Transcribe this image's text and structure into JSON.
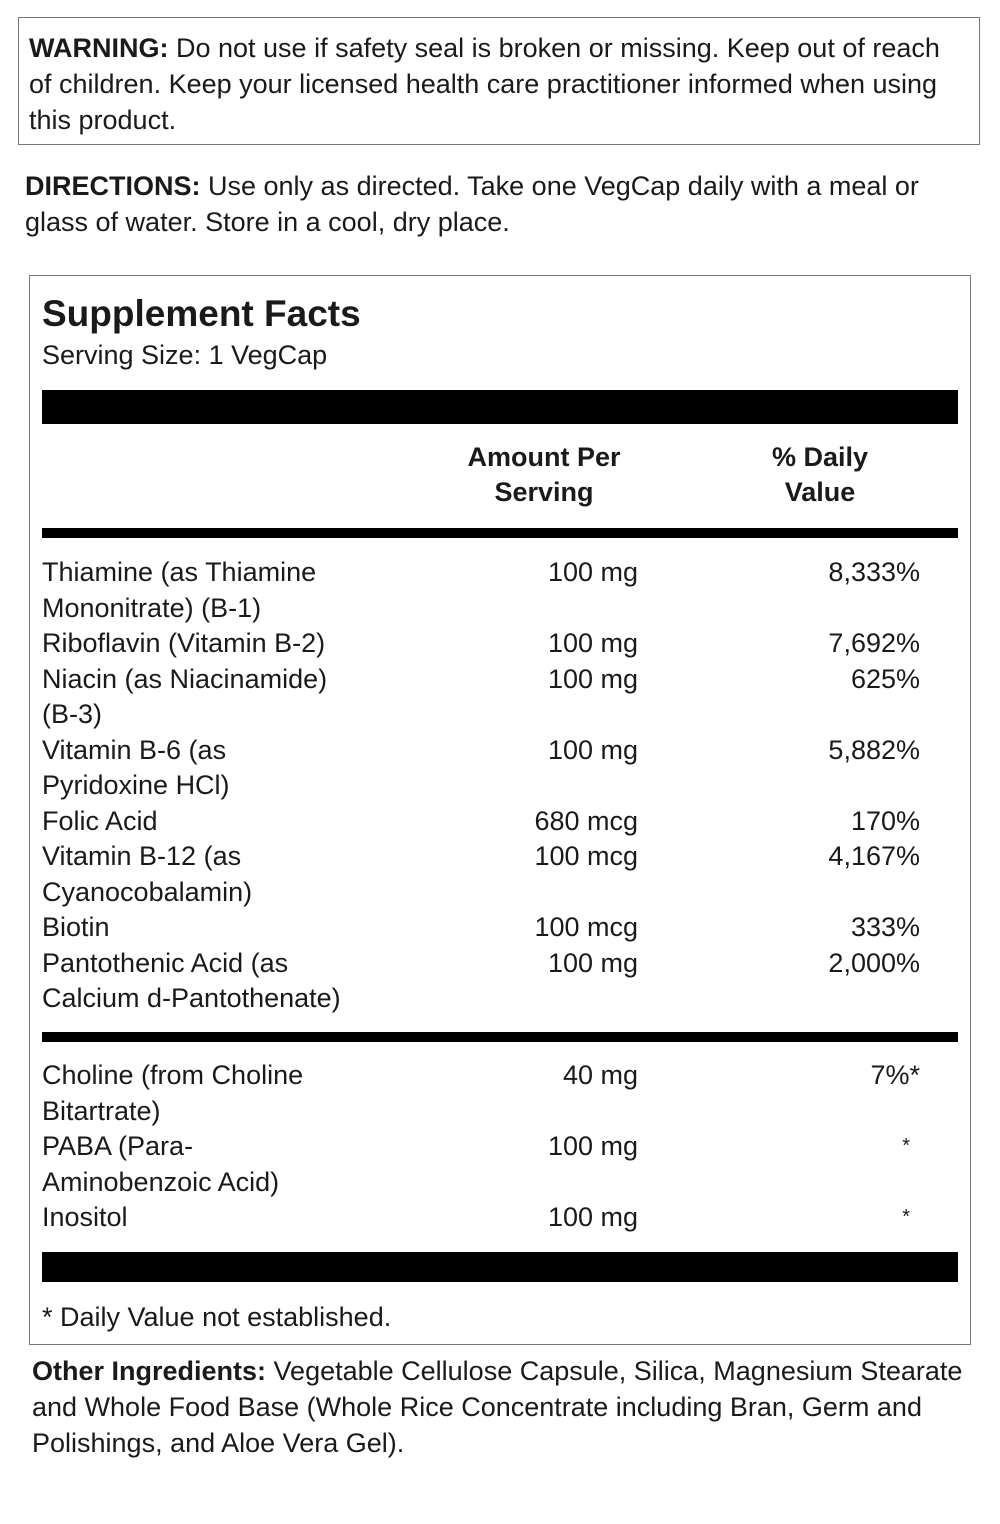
{
  "warning": {
    "label": "WARNING:",
    "text": " Do not use if safety seal is broken or missing. Keep out of reach of children. Keep your licensed health care practitioner informed when using this product."
  },
  "directions": {
    "label": "DIRECTIONS:",
    "text": " Use only as directed. Take one VegCap daily with a meal or glass of water.  Store in a cool, dry place."
  },
  "facts": {
    "title": "Supplement Facts",
    "serving_size": "Serving Size: 1 VegCap",
    "col_amount": [
      "Amount Per",
      "Serving"
    ],
    "col_dv": [
      "% Daily",
      "Value"
    ],
    "group1": [
      {
        "name": [
          "Thiamine (as Thiamine",
          "Mononitrate) (B-1)"
        ],
        "amount": "100 mg",
        "dv": "8,333%"
      },
      {
        "name": [
          "Riboflavin (Vitamin B-2)"
        ],
        "amount": "100 mg",
        "dv": "7,692%"
      },
      {
        "name": [
          "Niacin (as Niacinamide)",
          "(B-3)"
        ],
        "amount": "100 mg",
        "dv": "625%"
      },
      {
        "name": [
          "Vitamin B-6 (as",
          "Pyridoxine HCl)"
        ],
        "amount": "100 mg",
        "dv": "5,882%"
      },
      {
        "name": [
          "Folic Acid"
        ],
        "amount": "680 mcg",
        "dv": "170%"
      },
      {
        "name": [
          "Vitamin B-12 (as",
          "Cyanocobalamin)"
        ],
        "amount": "100 mcg",
        "dv": "4,167%"
      },
      {
        "name": [
          "Biotin"
        ],
        "amount": "100 mcg",
        "dv": "333%"
      },
      {
        "name": [
          "Pantothenic Acid (as",
          "Calcium d-Pantothenate)"
        ],
        "amount": "100 mg",
        "dv": "2,000%"
      }
    ],
    "group2": [
      {
        "name": [
          "Choline (from Choline",
          "Bitartrate)"
        ],
        "amount": "40 mg",
        "dv": "7%*"
      },
      {
        "name": [
          "PABA (Para-",
          "Aminobenzoic Acid)"
        ],
        "amount": "100 mg",
        "dv": "*"
      },
      {
        "name": [
          "Inositol"
        ],
        "amount": "100 mg",
        "dv": "*"
      }
    ],
    "footnote": "* Daily Value not established."
  },
  "other": {
    "label": "Other Ingredients:",
    "text": " Vegetable Cellulose Capsule, Silica, Magnesium Stearate and Whole Food Base (Whole Rice Concentrate including Bran, Germ and Polishings, and Aloe Vera Gel)."
  }
}
